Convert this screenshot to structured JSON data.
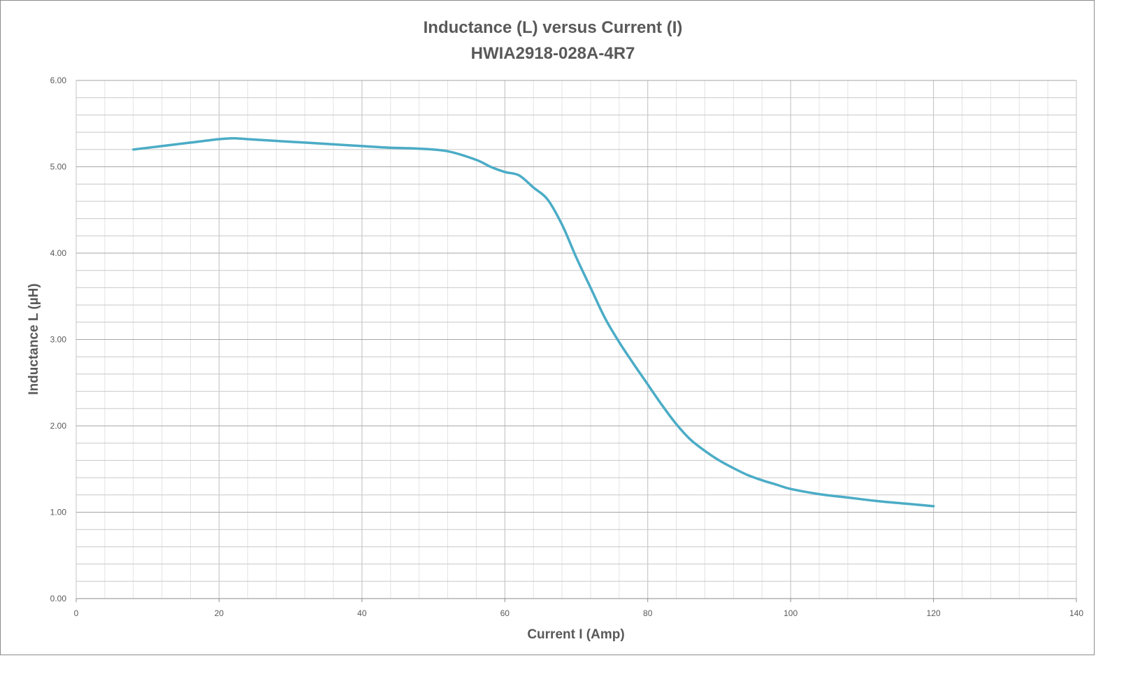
{
  "chart_data": {
    "type": "line",
    "title": "Inductance (L) versus Current (I)",
    "subtitle": "HWIA2918-028A-4R7",
    "xlabel": "Current I (Amp)",
    "ylabel": "Inductance L (µH)",
    "xlim": [
      0,
      140
    ],
    "ylim": [
      0,
      6
    ],
    "x_major_ticks": [
      "0",
      "20",
      "40",
      "60",
      "80",
      "100",
      "120",
      "140"
    ],
    "x_minor_step": 4,
    "y_major_ticks": [
      "0.00",
      "1.00",
      "2.00",
      "3.00",
      "4.00",
      "5.00",
      "6.00"
    ],
    "y_minor_step": 0.2,
    "grid": true,
    "line_color": "#4bacc6",
    "series": [
      {
        "x": [
          8,
          12,
          16,
          20,
          22,
          24,
          28,
          32,
          36,
          40,
          44,
          48,
          52,
          56,
          58,
          60,
          62,
          64,
          66,
          68,
          70,
          72,
          74,
          76,
          78,
          80,
          82,
          84,
          86,
          88,
          90,
          92,
          94,
          96,
          98,
          100,
          104,
          108,
          112,
          116,
          120
        ],
        "values": [
          5.2,
          5.24,
          5.28,
          5.32,
          5.33,
          5.32,
          5.3,
          5.28,
          5.26,
          5.24,
          5.22,
          5.21,
          5.18,
          5.08,
          5.0,
          4.94,
          4.9,
          4.76,
          4.62,
          4.33,
          3.95,
          3.6,
          3.25,
          2.97,
          2.72,
          2.48,
          2.24,
          2.02,
          1.84,
          1.71,
          1.6,
          1.51,
          1.43,
          1.37,
          1.32,
          1.27,
          1.21,
          1.17,
          1.13,
          1.1,
          1.07
        ]
      }
    ]
  }
}
